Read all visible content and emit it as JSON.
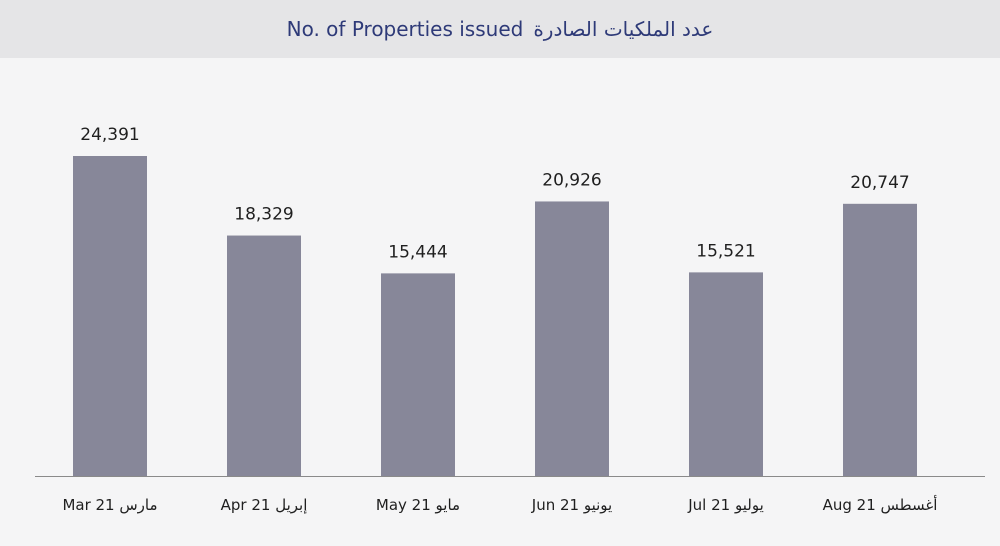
{
  "title_en": "No. of Properties issued",
  "title_ar": "عدد الملكيات الصادرة",
  "chart_data": {
    "type": "bar",
    "categories": [
      "Mar 21 مارس",
      "Apr 21 إبريل",
      "May 21 مايو",
      "Jun 21 يونيو",
      "Jul 21 يوليو",
      "Aug 21 أغسطس"
    ],
    "values": [
      24391,
      18329,
      15444,
      20926,
      15521,
      20747
    ],
    "value_labels": [
      "24,391",
      "18,329",
      "15,444",
      "20,926",
      "15,521",
      "20,747"
    ],
    "title": "No. of Properties issued  عدد الملكيات الصادرة",
    "xlabel": "",
    "ylabel": "",
    "ylim": [
      0,
      24391
    ],
    "grid": false,
    "colors": {
      "bar": "#878799",
      "axis": "#8a8a8a",
      "title": "#2e3a78"
    }
  }
}
